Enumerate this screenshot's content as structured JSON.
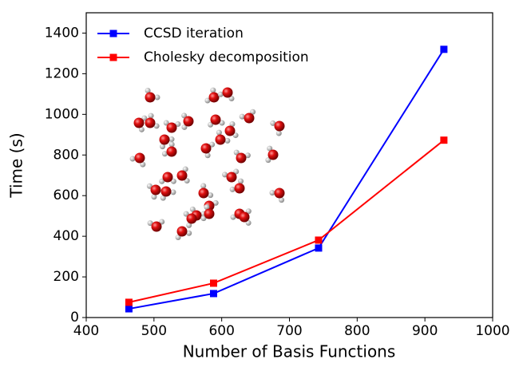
{
  "chart_data": {
    "type": "line",
    "x_label": "Number of Basis Functions",
    "y_label": "Time (s)",
    "xlim": [
      400,
      1000
    ],
    "xticks": [
      400,
      500,
      600,
      700,
      800,
      900,
      1000
    ],
    "ylim": [
      0,
      1500
    ],
    "yticks": [
      0,
      200,
      400,
      600,
      800,
      1000,
      1200,
      1400
    ],
    "grid": false,
    "legend": "upper left",
    "x": [
      463,
      588,
      743,
      928
    ],
    "series": [
      {
        "name": "CCSD iteration",
        "color": "#0000ff",
        "values": [
          43,
          118,
          342,
          1320
        ]
      },
      {
        "name": "Cholesky decomposition",
        "color": "#ff0000",
        "values": [
          75,
          169,
          381,
          873
        ]
      }
    ]
  }
}
